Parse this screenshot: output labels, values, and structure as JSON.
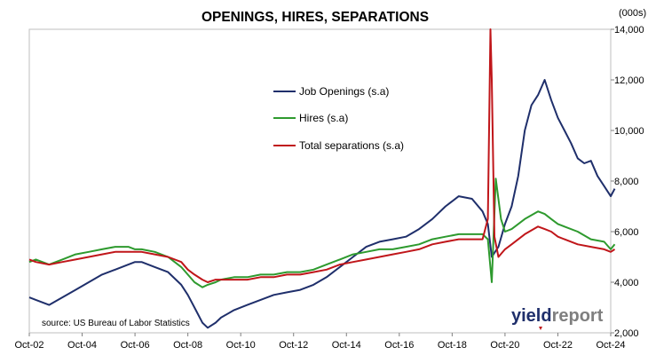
{
  "chart_data": {
    "type": "line",
    "title": "OPENINGS, HIRES, SEPARATIONS",
    "y_unit": "(000s)",
    "source": "source: US Bureau of Labor Statistics",
    "brand": {
      "part1": "yield",
      "part2": "report"
    },
    "ylim": [
      2000,
      14000
    ],
    "y_ticks": [
      "2,000",
      "4,000",
      "6,000",
      "8,000",
      "10,000",
      "12,000",
      "14,000"
    ],
    "y_tick_values": [
      2000,
      4000,
      6000,
      8000,
      10000,
      12000,
      14000
    ],
    "x_ticks": [
      "Oct-02",
      "Oct-04",
      "Oct-06",
      "Oct-08",
      "Oct-10",
      "Oct-12",
      "Oct-14",
      "Oct-16",
      "Oct-18",
      "Oct-20",
      "Oct-22",
      "Oct-24"
    ],
    "x_tick_values": [
      2002.75,
      2004.75,
      2006.75,
      2008.75,
      2010.75,
      2012.75,
      2014.75,
      2016.75,
      2018.75,
      2020.75,
      2022.75,
      2024.75
    ],
    "xlim": [
      2002.75,
      2024.75
    ],
    "grid": false,
    "legend_position": "center",
    "series": [
      {
        "name": "Job Openings (s.a)",
        "color": "#1f2f6b",
        "points": [
          [
            2002.75,
            3400
          ],
          [
            2003.0,
            3300
          ],
          [
            2003.5,
            3100
          ],
          [
            2004.0,
            3400
          ],
          [
            2004.5,
            3700
          ],
          [
            2005.0,
            4000
          ],
          [
            2005.5,
            4300
          ],
          [
            2006.0,
            4500
          ],
          [
            2006.5,
            4700
          ],
          [
            2006.75,
            4800
          ],
          [
            2007.0,
            4800
          ],
          [
            2007.5,
            4600
          ],
          [
            2008.0,
            4400
          ],
          [
            2008.5,
            3900
          ],
          [
            2008.75,
            3500
          ],
          [
            2009.0,
            3000
          ],
          [
            2009.3,
            2400
          ],
          [
            2009.5,
            2200
          ],
          [
            2009.8,
            2400
          ],
          [
            2010.0,
            2600
          ],
          [
            2010.5,
            2900
          ],
          [
            2011.0,
            3100
          ],
          [
            2011.5,
            3300
          ],
          [
            2012.0,
            3500
          ],
          [
            2012.5,
            3600
          ],
          [
            2013.0,
            3700
          ],
          [
            2013.5,
            3900
          ],
          [
            2014.0,
            4200
          ],
          [
            2014.5,
            4600
          ],
          [
            2015.0,
            5000
          ],
          [
            2015.5,
            5400
          ],
          [
            2016.0,
            5600
          ],
          [
            2016.5,
            5700
          ],
          [
            2017.0,
            5800
          ],
          [
            2017.5,
            6100
          ],
          [
            2018.0,
            6500
          ],
          [
            2018.5,
            7000
          ],
          [
            2019.0,
            7400
          ],
          [
            2019.5,
            7300
          ],
          [
            2019.9,
            6800
          ],
          [
            2020.1,
            6300
          ],
          [
            2020.25,
            5000
          ],
          [
            2020.5,
            5400
          ],
          [
            2020.75,
            6300
          ],
          [
            2021.0,
            7000
          ],
          [
            2021.25,
            8200
          ],
          [
            2021.5,
            10000
          ],
          [
            2021.75,
            11000
          ],
          [
            2022.0,
            11400
          ],
          [
            2022.25,
            12000
          ],
          [
            2022.5,
            11200
          ],
          [
            2022.75,
            10500
          ],
          [
            2023.0,
            10000
          ],
          [
            2023.25,
            9500
          ],
          [
            2023.5,
            8900
          ],
          [
            2023.75,
            8700
          ],
          [
            2024.0,
            8800
          ],
          [
            2024.25,
            8200
          ],
          [
            2024.5,
            7800
          ],
          [
            2024.75,
            7400
          ],
          [
            2024.9,
            7700
          ]
        ]
      },
      {
        "name": "Hires (s.a)",
        "color": "#2e9a2e",
        "points": [
          [
            2002.75,
            4800
          ],
          [
            2003.0,
            4900
          ],
          [
            2003.5,
            4700
          ],
          [
            2004.0,
            4900
          ],
          [
            2004.5,
            5100
          ],
          [
            2005.0,
            5200
          ],
          [
            2005.5,
            5300
          ],
          [
            2006.0,
            5400
          ],
          [
            2006.5,
            5400
          ],
          [
            2006.75,
            5300
          ],
          [
            2007.0,
            5300
          ],
          [
            2007.5,
            5200
          ],
          [
            2008.0,
            5000
          ],
          [
            2008.5,
            4600
          ],
          [
            2008.75,
            4300
          ],
          [
            2009.0,
            4000
          ],
          [
            2009.3,
            3800
          ],
          [
            2009.5,
            3900
          ],
          [
            2009.8,
            4000
          ],
          [
            2010.0,
            4100
          ],
          [
            2010.5,
            4200
          ],
          [
            2011.0,
            4200
          ],
          [
            2011.5,
            4300
          ],
          [
            2012.0,
            4300
          ],
          [
            2012.5,
            4400
          ],
          [
            2013.0,
            4400
          ],
          [
            2013.5,
            4500
          ],
          [
            2014.0,
            4700
          ],
          [
            2014.5,
            4900
          ],
          [
            2015.0,
            5100
          ],
          [
            2015.5,
            5200
          ],
          [
            2016.0,
            5300
          ],
          [
            2016.5,
            5300
          ],
          [
            2017.0,
            5400
          ],
          [
            2017.5,
            5500
          ],
          [
            2018.0,
            5700
          ],
          [
            2018.5,
            5800
          ],
          [
            2019.0,
            5900
          ],
          [
            2019.5,
            5900
          ],
          [
            2019.9,
            5900
          ],
          [
            2020.1,
            5700
          ],
          [
            2020.25,
            4000
          ],
          [
            2020.4,
            8100
          ],
          [
            2020.6,
            6500
          ],
          [
            2020.75,
            6000
          ],
          [
            2021.0,
            6100
          ],
          [
            2021.5,
            6500
          ],
          [
            2022.0,
            6800
          ],
          [
            2022.25,
            6700
          ],
          [
            2022.5,
            6500
          ],
          [
            2022.75,
            6300
          ],
          [
            2023.0,
            6200
          ],
          [
            2023.5,
            6000
          ],
          [
            2024.0,
            5700
          ],
          [
            2024.5,
            5600
          ],
          [
            2024.75,
            5300
          ],
          [
            2024.9,
            5500
          ]
        ]
      },
      {
        "name": "Total separations (s.a)",
        "color": "#c0161a",
        "points": [
          [
            2002.75,
            4900
          ],
          [
            2003.0,
            4800
          ],
          [
            2003.5,
            4700
          ],
          [
            2004.0,
            4800
          ],
          [
            2004.5,
            4900
          ],
          [
            2005.0,
            5000
          ],
          [
            2005.5,
            5100
          ],
          [
            2006.0,
            5200
          ],
          [
            2006.5,
            5200
          ],
          [
            2006.75,
            5200
          ],
          [
            2007.0,
            5200
          ],
          [
            2007.5,
            5100
          ],
          [
            2008.0,
            5000
          ],
          [
            2008.5,
            4800
          ],
          [
            2008.75,
            4500
          ],
          [
            2009.0,
            4300
          ],
          [
            2009.3,
            4100
          ],
          [
            2009.5,
            4000
          ],
          [
            2009.8,
            4100
          ],
          [
            2010.0,
            4100
          ],
          [
            2010.5,
            4100
          ],
          [
            2011.0,
            4100
          ],
          [
            2011.5,
            4200
          ],
          [
            2012.0,
            4200
          ],
          [
            2012.5,
            4300
          ],
          [
            2013.0,
            4300
          ],
          [
            2013.5,
            4400
          ],
          [
            2014.0,
            4500
          ],
          [
            2014.5,
            4700
          ],
          [
            2015.0,
            4800
          ],
          [
            2015.5,
            4900
          ],
          [
            2016.0,
            5000
          ],
          [
            2016.5,
            5100
          ],
          [
            2017.0,
            5200
          ],
          [
            2017.5,
            5300
          ],
          [
            2018.0,
            5500
          ],
          [
            2018.5,
            5600
          ],
          [
            2019.0,
            5700
          ],
          [
            2019.5,
            5700
          ],
          [
            2019.9,
            5700
          ],
          [
            2020.1,
            6500
          ],
          [
            2020.2,
            14000
          ],
          [
            2020.25,
            12000
          ],
          [
            2020.35,
            5800
          ],
          [
            2020.5,
            5000
          ],
          [
            2020.75,
            5300
          ],
          [
            2021.0,
            5500
          ],
          [
            2021.5,
            5900
          ],
          [
            2022.0,
            6200
          ],
          [
            2022.25,
            6100
          ],
          [
            2022.5,
            6000
          ],
          [
            2022.75,
            5800
          ],
          [
            2023.0,
            5700
          ],
          [
            2023.5,
            5500
          ],
          [
            2024.0,
            5400
          ],
          [
            2024.5,
            5300
          ],
          [
            2024.75,
            5200
          ],
          [
            2024.9,
            5300
          ]
        ]
      }
    ]
  }
}
